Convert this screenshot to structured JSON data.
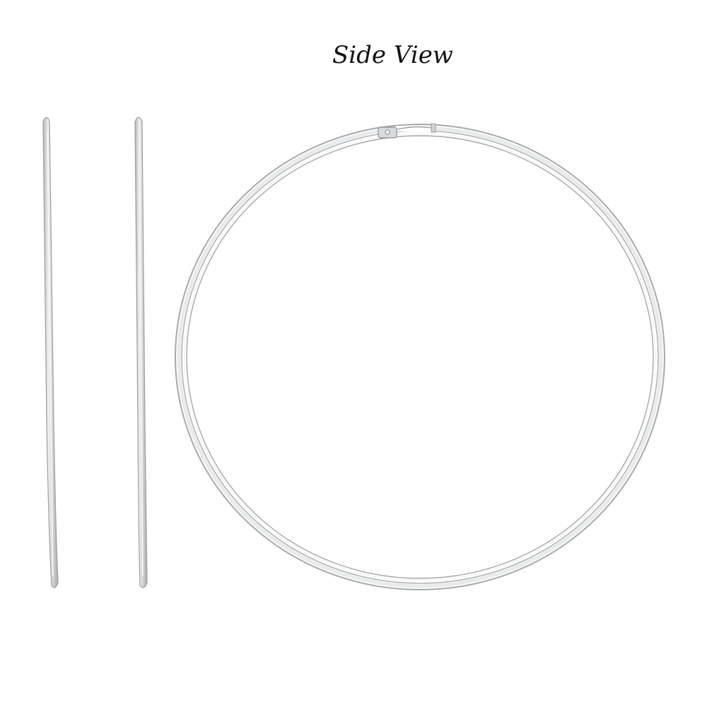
{
  "photo": {
    "caption": "Side View",
    "background_color": "#ffffff",
    "metal_color": "#c9cbcd"
  }
}
